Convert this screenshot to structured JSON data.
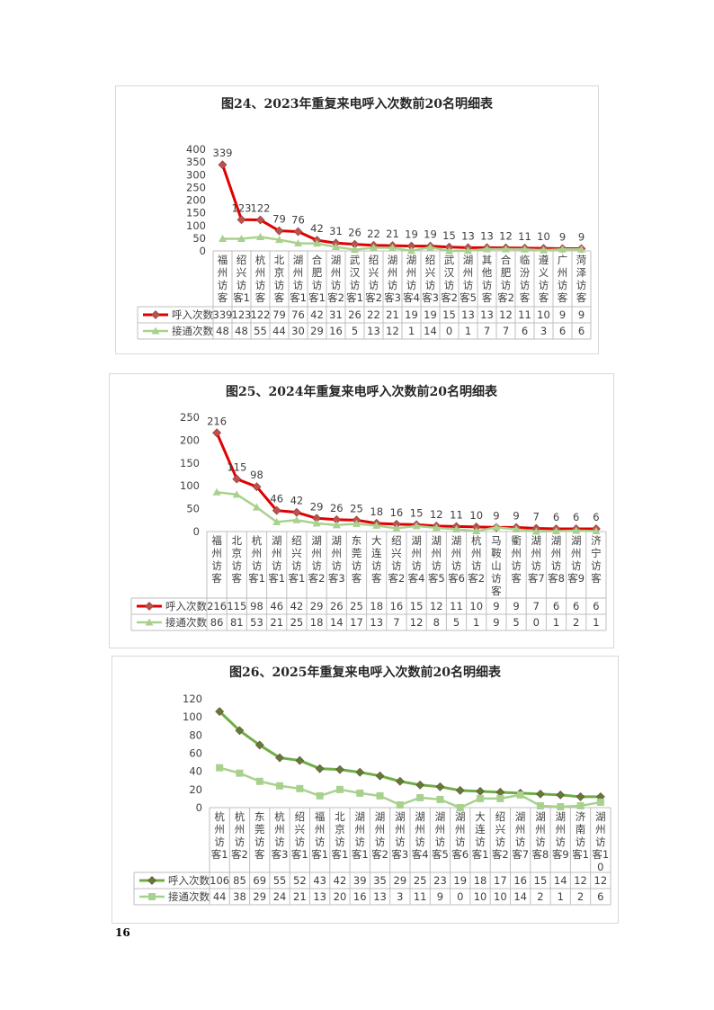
{
  "page_number": "16",
  "chart_data": [
    {
      "type": "line",
      "title": "图24、2023年重复来电呼入次数前20名明细表",
      "categories": [
        "福州访客",
        "绍兴访客1",
        "杭州访客",
        "北京访客",
        "湖州访客1",
        "合肥访客1",
        "湖州访客2",
        "武汉访客1",
        "绍兴访客2",
        "湖州访客3",
        "湖州访客4",
        "绍兴访客3",
        "武汉访客2",
        "湖州访客5",
        "其他访客",
        "合肥访客2",
        "临汾访客",
        "遵义访客",
        "广州访客",
        "菏泽访客"
      ],
      "category_labels": [
        [
          "福",
          "州",
          "访",
          "客"
        ],
        [
          "绍",
          "兴",
          "访",
          "客1"
        ],
        [
          "杭",
          "州",
          "访",
          "客"
        ],
        [
          "北",
          "京",
          "访",
          "客"
        ],
        [
          "湖",
          "州",
          "访",
          "客1"
        ],
        [
          "合",
          "肥",
          "访",
          "客1"
        ],
        [
          "湖",
          "州",
          "访",
          "客2"
        ],
        [
          "武",
          "汉",
          "访",
          "客1"
        ],
        [
          "绍",
          "兴",
          "访",
          "客2"
        ],
        [
          "湖",
          "州",
          "访",
          "客3"
        ],
        [
          "湖",
          "州",
          "访",
          "客4"
        ],
        [
          "绍",
          "兴",
          "访",
          "客3"
        ],
        [
          "武",
          "汉",
          "访",
          "客2"
        ],
        [
          "湖",
          "州",
          "访",
          "客5"
        ],
        [
          "其",
          "他",
          "访",
          "客"
        ],
        [
          "合",
          "肥",
          "访",
          "客2"
        ],
        [
          "临",
          "汾",
          "访",
          "客"
        ],
        [
          "遵",
          "义",
          "访",
          "客"
        ],
        [
          "广",
          "州",
          "访",
          "客"
        ],
        [
          "菏",
          "泽",
          "访",
          "客"
        ]
      ],
      "series": [
        {
          "name": "呼入次数",
          "values": [
            339,
            123,
            122,
            79,
            76,
            42,
            31,
            26,
            22,
            21,
            19,
            19,
            15,
            13,
            13,
            12,
            11,
            10,
            9,
            9
          ],
          "color": "#e00000",
          "marker_color": "#c0504d",
          "marker": "diamond",
          "data_labels": true
        },
        {
          "name": "接通次数",
          "values": [
            48,
            48,
            55,
            44,
            30,
            29,
            16,
            5,
            13,
            12,
            1,
            14,
            0,
            1,
            7,
            7,
            6,
            3,
            6,
            6
          ],
          "color": "#a9d18e",
          "marker_color": "#a9d18e",
          "marker": "triangle",
          "data_labels": false
        }
      ],
      "ylim": [
        0,
        400
      ],
      "yticks": [
        0,
        50,
        100,
        150,
        200,
        250,
        300,
        350,
        400
      ],
      "legend": "bottom-table",
      "grid": false
    },
    {
      "type": "line",
      "title": "图25、2024年重复来电呼入次数前20名明细表",
      "categories": [
        "福州访客",
        "北京访客",
        "杭州访客1",
        "湖州访客1",
        "绍兴访客1",
        "湖州访客2",
        "湖州访客3",
        "东莞访客",
        "大连访客",
        "绍兴访客2",
        "湖州访客4",
        "湖州访客5",
        "湖州访客6",
        "杭州访客2",
        "马鞍山访客",
        "衢州访客",
        "湖州访客7",
        "湖州访客8",
        "湖州访客9",
        "济宁访客"
      ],
      "category_labels": [
        [
          "福",
          "州",
          "访",
          "客"
        ],
        [
          "北",
          "京",
          "访",
          "客"
        ],
        [
          "杭",
          "州",
          "访",
          "客1"
        ],
        [
          "湖",
          "州",
          "访",
          "客1"
        ],
        [
          "绍",
          "兴",
          "访",
          "客1"
        ],
        [
          "湖",
          "州",
          "访",
          "客2"
        ],
        [
          "湖",
          "州",
          "访",
          "客3"
        ],
        [
          "东",
          "莞",
          "访",
          "客"
        ],
        [
          "大",
          "连",
          "访",
          "客"
        ],
        [
          "绍",
          "兴",
          "访",
          "客2"
        ],
        [
          "湖",
          "州",
          "访",
          "客4"
        ],
        [
          "湖",
          "州",
          "访",
          "客5"
        ],
        [
          "湖",
          "州",
          "访",
          "客6"
        ],
        [
          "杭",
          "州",
          "访",
          "客2"
        ],
        [
          "马",
          "鞍",
          "山",
          "访",
          "客"
        ],
        [
          "衢",
          "州",
          "访",
          "客"
        ],
        [
          "湖",
          "州",
          "访",
          "客7"
        ],
        [
          "湖",
          "州",
          "访",
          "客8"
        ],
        [
          "湖",
          "州",
          "访",
          "客9"
        ],
        [
          "济",
          "宁",
          "访",
          "客"
        ]
      ],
      "series": [
        {
          "name": "呼入次数",
          "values": [
            216,
            115,
            98,
            46,
            42,
            29,
            26,
            25,
            18,
            16,
            15,
            12,
            11,
            10,
            9,
            9,
            7,
            6,
            6,
            6
          ],
          "color": "#e00000",
          "marker_color": "#c0504d",
          "marker": "diamond",
          "data_labels": true
        },
        {
          "name": "接通次数",
          "values": [
            86,
            81,
            53,
            21,
            25,
            18,
            14,
            17,
            13,
            7,
            12,
            8,
            5,
            1,
            9,
            5,
            0,
            1,
            2,
            1
          ],
          "color": "#a9d18e",
          "marker_color": "#a9d18e",
          "marker": "triangle",
          "data_labels": false
        }
      ],
      "ylim": [
        0,
        250
      ],
      "yticks": [
        0,
        50,
        100,
        150,
        200,
        250
      ],
      "legend": "bottom-table",
      "grid": false
    },
    {
      "type": "line",
      "title": "图26、2025年重复来电呼入次数前20名明细表",
      "categories": [
        "杭州访客1",
        "杭州访客2",
        "东莞访客",
        "杭州访客3",
        "绍兴访客1",
        "福州访客1",
        "北京访客1",
        "湖州访客1",
        "湖州访客2",
        "湖州访客3",
        "湖州访客4",
        "湖州访客5",
        "湖州访客6",
        "大连访客1",
        "绍兴访客2",
        "湖州访客7",
        "湖州访客8",
        "湖州访客9",
        "济南访客1",
        "湖州访客10"
      ],
      "category_labels": [
        [
          "杭",
          "州",
          "访",
          "客1"
        ],
        [
          "杭",
          "州",
          "访",
          "客2"
        ],
        [
          "东",
          "莞",
          "访",
          "客"
        ],
        [
          "杭",
          "州",
          "访",
          "客3"
        ],
        [
          "绍",
          "兴",
          "访",
          "客1"
        ],
        [
          "福",
          "州",
          "访",
          "客1"
        ],
        [
          "北",
          "京",
          "访",
          "客1"
        ],
        [
          "湖",
          "州",
          "访",
          "客1"
        ],
        [
          "湖",
          "州",
          "访",
          "客2"
        ],
        [
          "湖",
          "州",
          "访",
          "客3"
        ],
        [
          "湖",
          "州",
          "访",
          "客4"
        ],
        [
          "湖",
          "州",
          "访",
          "客5"
        ],
        [
          "湖",
          "州",
          "访",
          "客6"
        ],
        [
          "大",
          "连",
          "访",
          "客1"
        ],
        [
          "绍",
          "兴",
          "访",
          "客2"
        ],
        [
          "湖",
          "州",
          "访",
          "客7"
        ],
        [
          "湖",
          "州",
          "访",
          "客8"
        ],
        [
          "湖",
          "州",
          "访",
          "客9"
        ],
        [
          "济",
          "南",
          "访",
          "客1"
        ],
        [
          "湖",
          "州",
          "访",
          "客1",
          "0"
        ]
      ],
      "series": [
        {
          "name": "呼入次数",
          "values": [
            106,
            85,
            69,
            55,
            52,
            43,
            42,
            39,
            35,
            29,
            25,
            23,
            19,
            18,
            17,
            16,
            15,
            14,
            12,
            12
          ],
          "color": "#70ad47",
          "marker_color": "#548235",
          "marker": "diamond",
          "data_labels": false
        },
        {
          "name": "接通次数",
          "values": [
            44,
            38,
            29,
            24,
            21,
            13,
            20,
            16,
            13,
            3,
            11,
            9,
            0,
            10,
            10,
            14,
            2,
            1,
            2,
            6
          ],
          "color": "#a9d18e",
          "marker_color": "#a9d18e",
          "marker": "square",
          "data_labels": false
        }
      ],
      "ylim": [
        0,
        120
      ],
      "yticks": [
        0,
        20,
        40,
        60,
        80,
        100,
        120
      ],
      "legend": "bottom-table",
      "grid": false
    }
  ]
}
